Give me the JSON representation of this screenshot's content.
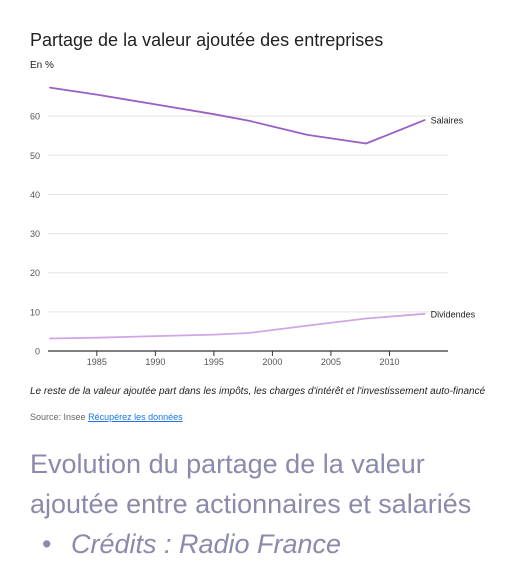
{
  "chart_data": {
    "type": "line",
    "title": "Partage de la valeur ajoutée des entreprises",
    "ylabel": "En %",
    "xlabel": "",
    "x_ticks": [
      1985,
      1990,
      1995,
      2000,
      2005,
      2010
    ],
    "y_ticks": [
      0,
      10,
      20,
      30,
      40,
      50,
      60
    ],
    "xlim": [
      1981,
      2015
    ],
    "ylim": [
      0,
      70
    ],
    "grid": true,
    "legend": "inline-right",
    "series": [
      {
        "name": "Salaires",
        "color": "#9a5fc4",
        "points": [
          [
            1981,
            67.3
          ],
          [
            1985,
            65.5
          ],
          [
            1990,
            63.0
          ],
          [
            1995,
            60.5
          ],
          [
            1998,
            58.8
          ],
          [
            2003,
            55.2
          ],
          [
            2008,
            53.0
          ],
          [
            2013,
            59.0
          ]
        ]
      },
      {
        "name": "Dividendes",
        "color": "#cfa6e6",
        "points": [
          [
            1981,
            3.2
          ],
          [
            1985,
            3.4
          ],
          [
            1990,
            3.8
          ],
          [
            1995,
            4.2
          ],
          [
            1998,
            4.6
          ],
          [
            2003,
            6.5
          ],
          [
            2008,
            8.3
          ],
          [
            2013,
            9.5
          ]
        ]
      }
    ]
  },
  "note": "Le reste de la valeur ajoutée part dans les impôts, les charges d'intérêt et l'investissement auto-financé",
  "source": {
    "label": "Source: Insee",
    "link_text": "Récupérez les données"
  },
  "caption": {
    "text": "Evolution du partage de la valeur ajoutée entre actionnaires et salariés",
    "separator": "•",
    "credits": "Crédits : Radio France"
  }
}
